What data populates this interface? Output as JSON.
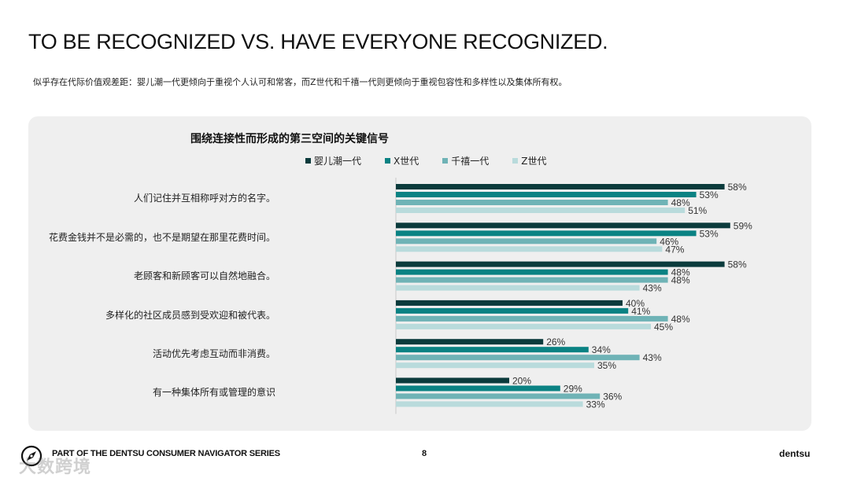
{
  "page": {
    "title": "TO BE RECOGNIZED VS. HAVE EVERYONE RECOGNIZED.",
    "subtitle": "似乎存在代际价值观差距：婴儿潮一代更倾向于重视个人认可和常客，而Z世代和千禧一代则更倾向于重视包容性和多样性以及集体所有权。"
  },
  "chart_data": {
    "type": "bar",
    "orientation": "horizontal",
    "title": "围绕连接性而形成的第三空间的关键信号",
    "categories": [
      "人们记住并互相称呼对方的名字。",
      "花费金钱并不是必需的，也不是期望在那里花费时间。",
      "老顾客和新顾客可以自然地融合。",
      "多样化的社区成员感到受欢迎和被代表。",
      "活动优先考虑互动而非消费。",
      "有一种集体所有或管理的意识"
    ],
    "series": [
      {
        "name": "婴儿潮一代",
        "color": "#0b3b3c",
        "values": [
          58,
          59,
          58,
          40,
          26,
          20
        ]
      },
      {
        "name": "X世代",
        "color": "#0a8283",
        "values": [
          53,
          53,
          48,
          41,
          34,
          29
        ]
      },
      {
        "name": "千禧一代",
        "color": "#6fb3b6",
        "values": [
          48,
          46,
          48,
          48,
          43,
          36
        ]
      },
      {
        "name": "Z世代",
        "color": "#b9dbdc",
        "values": [
          51,
          47,
          43,
          45,
          35,
          33
        ]
      }
    ],
    "value_suffix": "%",
    "xlim": [
      0,
      100
    ],
    "legend_position": "top",
    "grid": false
  },
  "footer": {
    "series_text": "PART OF THE DENTSU CONSUMER NAVIGATOR SERIES",
    "page_number": "8",
    "brand": "dentsu",
    "watermark": "大数跨境",
    "logo_icon": "compass-logo-icon"
  }
}
